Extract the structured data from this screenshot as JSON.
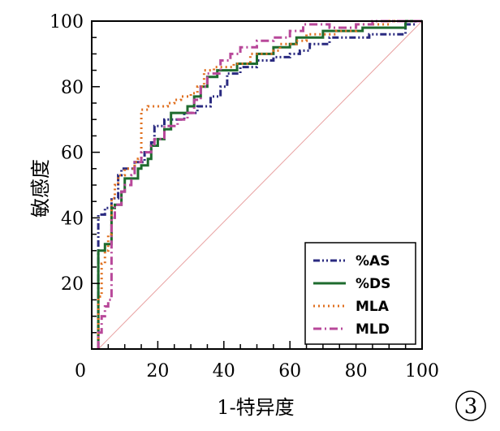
{
  "chart_data": {
    "type": "line",
    "xlabel": "1-特异度",
    "ylabel": "敏感度",
    "xlim": [
      0,
      100
    ],
    "ylim": [
      0,
      100
    ],
    "x_ticks": [
      0,
      20,
      40,
      60,
      80,
      100
    ],
    "y_ticks": [
      20,
      40,
      60,
      80,
      100
    ],
    "x_tick_labels": [
      "0",
      "20",
      "40",
      "60",
      "80",
      "100"
    ],
    "y_tick_labels": [
      "20",
      "40",
      "60",
      "80",
      "100"
    ],
    "legend_position": "bottom-right",
    "grid": false,
    "reference_line": {
      "from": [
        2,
        0
      ],
      "to": [
        100,
        100
      ],
      "color": "#e8a0a0"
    },
    "series": [
      {
        "name": "%AS",
        "color": "#2a2a80",
        "dash": "8,3,2,3,2,3",
        "points": [
          [
            2,
            0
          ],
          [
            2,
            35
          ],
          [
            2,
            41
          ],
          [
            4,
            41
          ],
          [
            4,
            43
          ],
          [
            6,
            43
          ],
          [
            6,
            46
          ],
          [
            8,
            46
          ],
          [
            8,
            53
          ],
          [
            9,
            53
          ],
          [
            9,
            55
          ],
          [
            13,
            55
          ],
          [
            13,
            57
          ],
          [
            16,
            57
          ],
          [
            16,
            60
          ],
          [
            18,
            60
          ],
          [
            18,
            63
          ],
          [
            19,
            63
          ],
          [
            19,
            68
          ],
          [
            22,
            68
          ],
          [
            22,
            70
          ],
          [
            28,
            70
          ],
          [
            28,
            72
          ],
          [
            32,
            72
          ],
          [
            32,
            74
          ],
          [
            36,
            74
          ],
          [
            36,
            77
          ],
          [
            39,
            77
          ],
          [
            39,
            80
          ],
          [
            41,
            80
          ],
          [
            41,
            84
          ],
          [
            45,
            84
          ],
          [
            45,
            86
          ],
          [
            50,
            86
          ],
          [
            50,
            88
          ],
          [
            55,
            88
          ],
          [
            55,
            89
          ],
          [
            60,
            89
          ],
          [
            60,
            90
          ],
          [
            63,
            90
          ],
          [
            63,
            91
          ],
          [
            66,
            91
          ],
          [
            66,
            93
          ],
          [
            72,
            93
          ],
          [
            72,
            95
          ],
          [
            84,
            95
          ],
          [
            84,
            96
          ],
          [
            95,
            96
          ],
          [
            95,
            99
          ],
          [
            98,
            99
          ],
          [
            98,
            100
          ],
          [
            100,
            100
          ]
        ]
      },
      {
        "name": "%DS",
        "color": "#1e6b2e",
        "dash": "",
        "points": [
          [
            2,
            0
          ],
          [
            2,
            30
          ],
          [
            4,
            30
          ],
          [
            4,
            32
          ],
          [
            6,
            32
          ],
          [
            6,
            43
          ],
          [
            7,
            43
          ],
          [
            7,
            44
          ],
          [
            9,
            44
          ],
          [
            9,
            48
          ],
          [
            10,
            48
          ],
          [
            10,
            52
          ],
          [
            14,
            52
          ],
          [
            14,
            55
          ],
          [
            15,
            55
          ],
          [
            15,
            56
          ],
          [
            17,
            56
          ],
          [
            17,
            58
          ],
          [
            18,
            58
          ],
          [
            18,
            62
          ],
          [
            20,
            62
          ],
          [
            20,
            64
          ],
          [
            22,
            64
          ],
          [
            22,
            67
          ],
          [
            24,
            67
          ],
          [
            24,
            72
          ],
          [
            29,
            72
          ],
          [
            29,
            74
          ],
          [
            31,
            74
          ],
          [
            31,
            77
          ],
          [
            33,
            77
          ],
          [
            33,
            80
          ],
          [
            35,
            80
          ],
          [
            35,
            83
          ],
          [
            38,
            83
          ],
          [
            38,
            85
          ],
          [
            44,
            85
          ],
          [
            44,
            87
          ],
          [
            50,
            87
          ],
          [
            50,
            90
          ],
          [
            55,
            90
          ],
          [
            55,
            92
          ],
          [
            60,
            92
          ],
          [
            60,
            93
          ],
          [
            62,
            93
          ],
          [
            62,
            95
          ],
          [
            70,
            95
          ],
          [
            70,
            97
          ],
          [
            82,
            97
          ],
          [
            82,
            98
          ],
          [
            95,
            98
          ],
          [
            95,
            100
          ],
          [
            100,
            100
          ]
        ]
      },
      {
        "name": "MLA",
        "color": "#e07020",
        "dash": "2,4",
        "points": [
          [
            2,
            0
          ],
          [
            2,
            16
          ],
          [
            3,
            16
          ],
          [
            3,
            26
          ],
          [
            4,
            26
          ],
          [
            4,
            30
          ],
          [
            5,
            30
          ],
          [
            5,
            35
          ],
          [
            6,
            35
          ],
          [
            6,
            46
          ],
          [
            7,
            46
          ],
          [
            7,
            50
          ],
          [
            8,
            50
          ],
          [
            8,
            53
          ],
          [
            10,
            53
          ],
          [
            10,
            55
          ],
          [
            13,
            55
          ],
          [
            13,
            57
          ],
          [
            14,
            57
          ],
          [
            14,
            58
          ],
          [
            15,
            58
          ],
          [
            15,
            73
          ],
          [
            17,
            73
          ],
          [
            17,
            74
          ],
          [
            23,
            74
          ],
          [
            23,
            75
          ],
          [
            25,
            75
          ],
          [
            25,
            76
          ],
          [
            27,
            76
          ],
          [
            27,
            77
          ],
          [
            30,
            77
          ],
          [
            30,
            78
          ],
          [
            32,
            78
          ],
          [
            32,
            80
          ],
          [
            34,
            80
          ],
          [
            34,
            85
          ],
          [
            37,
            85
          ],
          [
            37,
            86
          ],
          [
            43,
            86
          ],
          [
            43,
            87
          ],
          [
            48,
            87
          ],
          [
            48,
            90
          ],
          [
            55,
            90
          ],
          [
            55,
            91
          ],
          [
            57,
            91
          ],
          [
            57,
            93
          ],
          [
            62,
            93
          ],
          [
            62,
            94
          ],
          [
            65,
            94
          ],
          [
            65,
            96
          ],
          [
            74,
            96
          ],
          [
            74,
            97
          ],
          [
            80,
            97
          ],
          [
            80,
            99
          ],
          [
            90,
            99
          ],
          [
            90,
            100
          ],
          [
            100,
            100
          ]
        ]
      },
      {
        "name": "MLD",
        "color": "#b8489a",
        "dash": "10,4,2,4",
        "points": [
          [
            2,
            0
          ],
          [
            2,
            5
          ],
          [
            3,
            5
          ],
          [
            3,
            10
          ],
          [
            4,
            10
          ],
          [
            4,
            13
          ],
          [
            5,
            13
          ],
          [
            5,
            15
          ],
          [
            6,
            15
          ],
          [
            6,
            40
          ],
          [
            7,
            40
          ],
          [
            7,
            44
          ],
          [
            9,
            44
          ],
          [
            9,
            48
          ],
          [
            10,
            48
          ],
          [
            10,
            50
          ],
          [
            12,
            50
          ],
          [
            12,
            53
          ],
          [
            13,
            53
          ],
          [
            13,
            57
          ],
          [
            15,
            57
          ],
          [
            15,
            60
          ],
          [
            18,
            60
          ],
          [
            18,
            62
          ],
          [
            19,
            62
          ],
          [
            19,
            64
          ],
          [
            22,
            64
          ],
          [
            22,
            68
          ],
          [
            26,
            68
          ],
          [
            26,
            70
          ],
          [
            29,
            70
          ],
          [
            29,
            72
          ],
          [
            31,
            72
          ],
          [
            31,
            76
          ],
          [
            33,
            76
          ],
          [
            33,
            80
          ],
          [
            35,
            80
          ],
          [
            35,
            84
          ],
          [
            39,
            84
          ],
          [
            39,
            88
          ],
          [
            42,
            88
          ],
          [
            42,
            90
          ],
          [
            45,
            90
          ],
          [
            45,
            92
          ],
          [
            50,
            92
          ],
          [
            50,
            94
          ],
          [
            55,
            94
          ],
          [
            55,
            95
          ],
          [
            60,
            95
          ],
          [
            60,
            97
          ],
          [
            64,
            97
          ],
          [
            64,
            99
          ],
          [
            72,
            99
          ],
          [
            72,
            98
          ],
          [
            80,
            98
          ],
          [
            80,
            99
          ],
          [
            85,
            99
          ],
          [
            85,
            100
          ],
          [
            100,
            100
          ]
        ]
      }
    ]
  },
  "panel_badge": "3"
}
